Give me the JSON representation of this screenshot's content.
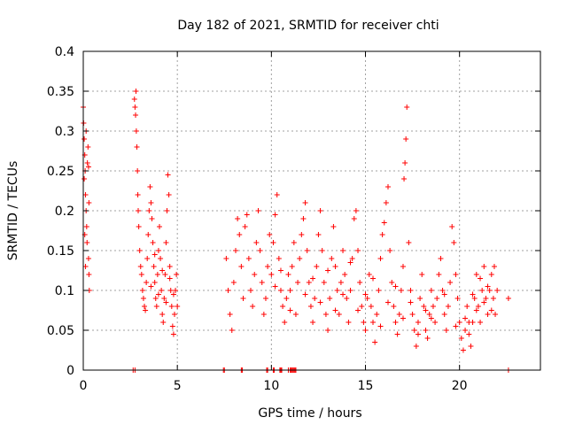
{
  "chart_data": {
    "type": "scatter",
    "title": "Day 182 of 2021, SRMTID for receiver chti",
    "xlabel": "GPS time / hours",
    "ylabel": "SRMTID / TECUs",
    "xlim": [
      0,
      24.3
    ],
    "ylim": [
      0,
      0.4
    ],
    "xticks": [
      0,
      5,
      10,
      15,
      20
    ],
    "xtick_labels": [
      "0",
      "5",
      "10",
      "15",
      "20"
    ],
    "yticks": [
      0,
      0.05,
      0.1,
      0.15,
      0.2,
      0.25,
      0.3,
      0.35,
      0.4
    ],
    "ytick_labels": [
      "0",
      "0.05",
      "0.1",
      "0.15",
      "0.2",
      "0.25",
      "0.3",
      "0.35",
      "0.4"
    ],
    "grid": true,
    "marker": "+",
    "color": "#ff0000",
    "series": [
      {
        "name": "SRMTID",
        "points": [
          [
            0.0,
            0.33
          ],
          [
            0.02,
            0.31
          ],
          [
            0.05,
            0.29
          ],
          [
            0.08,
            0.27
          ],
          [
            0.1,
            0.25
          ],
          [
            0.12,
            0.22
          ],
          [
            0.15,
            0.2
          ],
          [
            0.18,
            0.18
          ],
          [
            0.2,
            0.16
          ],
          [
            0.22,
            0.26
          ],
          [
            0.25,
            0.28
          ],
          [
            0.15,
            0.3
          ],
          [
            0.28,
            0.14
          ],
          [
            0.3,
            0.12
          ],
          [
            0.32,
            0.1
          ],
          [
            0.05,
            0.24
          ],
          [
            0.08,
            0.17
          ],
          [
            0.12,
            0.13
          ],
          [
            0.28,
            0.255
          ],
          [
            0.3,
            0.21
          ],
          [
            2.65,
            0.0
          ],
          [
            2.75,
            0.0
          ],
          [
            2.72,
            0.34
          ],
          [
            2.75,
            0.33
          ],
          [
            2.78,
            0.32
          ],
          [
            2.8,
            0.35
          ],
          [
            2.82,
            0.3
          ],
          [
            2.85,
            0.28
          ],
          [
            2.88,
            0.25
          ],
          [
            2.9,
            0.22
          ],
          [
            2.92,
            0.2
          ],
          [
            2.95,
            0.18
          ],
          [
            3.0,
            0.15
          ],
          [
            3.05,
            0.13
          ],
          [
            3.1,
            0.12
          ],
          [
            3.15,
            0.1
          ],
          [
            3.2,
            0.09
          ],
          [
            3.25,
            0.08
          ],
          [
            3.3,
            0.075
          ],
          [
            3.35,
            0.11
          ],
          [
            3.4,
            0.14
          ],
          [
            3.45,
            0.17
          ],
          [
            3.5,
            0.2
          ],
          [
            3.55,
            0.23
          ],
          [
            3.6,
            0.21
          ],
          [
            3.65,
            0.19
          ],
          [
            3.7,
            0.16
          ],
          [
            3.75,
            0.13
          ],
          [
            3.8,
            0.11
          ],
          [
            3.85,
            0.09
          ],
          [
            3.9,
            0.08
          ],
          [
            3.95,
            0.12
          ],
          [
            4.0,
            0.15
          ],
          [
            4.05,
            0.18
          ],
          [
            4.1,
            0.14
          ],
          [
            4.15,
            0.1
          ],
          [
            4.2,
            0.07
          ],
          [
            4.25,
            0.06
          ],
          [
            4.3,
            0.09
          ],
          [
            4.35,
            0.12
          ],
          [
            4.4,
            0.16
          ],
          [
            4.45,
            0.2
          ],
          [
            4.5,
            0.245
          ],
          [
            4.55,
            0.22
          ],
          [
            4.6,
            0.13
          ],
          [
            4.65,
            0.1
          ],
          [
            4.7,
            0.08
          ],
          [
            4.75,
            0.055
          ],
          [
            4.8,
            0.045
          ],
          [
            4.85,
            0.07
          ],
          [
            4.9,
            0.1
          ],
          [
            4.95,
            0.12
          ],
          [
            5.0,
            0.08
          ],
          [
            3.6,
            0.105
          ],
          [
            3.8,
            0.145
          ],
          [
            4.0,
            0.095
          ],
          [
            4.2,
            0.125
          ],
          [
            4.4,
            0.085
          ],
          [
            4.6,
            0.115
          ],
          [
            4.8,
            0.095
          ],
          [
            7.45,
            0.0
          ],
          [
            7.5,
            0.0
          ],
          [
            8.4,
            0.0
          ],
          [
            8.45,
            0.0
          ],
          [
            9.75,
            0.0
          ],
          [
            9.8,
            0.0
          ],
          [
            10.1,
            0.0
          ],
          [
            10.15,
            0.0
          ],
          [
            10.45,
            0.0
          ],
          [
            10.5,
            0.0
          ],
          [
            10.55,
            0.0
          ],
          [
            10.9,
            0.0
          ],
          [
            11.0,
            0.0
          ],
          [
            11.05,
            0.0
          ],
          [
            11.1,
            0.0
          ],
          [
            11.15,
            0.0
          ],
          [
            11.2,
            0.0
          ],
          [
            11.25,
            0.0
          ],
          [
            11.3,
            0.0
          ],
          [
            22.6,
            0.0
          ],
          [
            7.6,
            0.14
          ],
          [
            7.7,
            0.1
          ],
          [
            7.8,
            0.07
          ],
          [
            7.9,
            0.05
          ],
          [
            8.0,
            0.11
          ],
          [
            8.1,
            0.15
          ],
          [
            8.2,
            0.19
          ],
          [
            8.3,
            0.17
          ],
          [
            8.4,
            0.13
          ],
          [
            8.5,
            0.09
          ],
          [
            8.6,
            0.18
          ],
          [
            8.7,
            0.195
          ],
          [
            8.8,
            0.14
          ],
          [
            8.9,
            0.1
          ],
          [
            9.0,
            0.08
          ],
          [
            9.1,
            0.12
          ],
          [
            9.2,
            0.16
          ],
          [
            9.3,
            0.2
          ],
          [
            9.4,
            0.15
          ],
          [
            9.5,
            0.11
          ],
          [
            9.6,
            0.07
          ],
          [
            9.7,
            0.09
          ],
          [
            9.8,
            0.13
          ],
          [
            9.9,
            0.17
          ],
          [
            10.0,
            0.12
          ],
          [
            10.1,
            0.16
          ],
          [
            10.2,
            0.195
          ],
          [
            10.3,
            0.22
          ],
          [
            10.4,
            0.14
          ],
          [
            10.5,
            0.1
          ],
          [
            10.6,
            0.08
          ],
          [
            10.7,
            0.06
          ],
          [
            10.8,
            0.09
          ],
          [
            10.9,
            0.12
          ],
          [
            11.0,
            0.1
          ],
          [
            11.1,
            0.13
          ],
          [
            11.2,
            0.16
          ],
          [
            11.3,
            0.07
          ],
          [
            11.4,
            0.11
          ],
          [
            11.5,
            0.14
          ],
          [
            11.6,
            0.17
          ],
          [
            11.7,
            0.19
          ],
          [
            11.8,
            0.21
          ],
          [
            11.9,
            0.15
          ],
          [
            12.0,
            0.11
          ],
          [
            12.1,
            0.08
          ],
          [
            12.2,
            0.06
          ],
          [
            12.3,
            0.09
          ],
          [
            12.4,
            0.13
          ],
          [
            12.5,
            0.17
          ],
          [
            12.6,
            0.2
          ],
          [
            12.7,
            0.15
          ],
          [
            12.8,
            0.11
          ],
          [
            12.9,
            0.07
          ],
          [
            13.0,
            0.05
          ],
          [
            13.1,
            0.09
          ],
          [
            13.2,
            0.14
          ],
          [
            13.3,
            0.18
          ],
          [
            13.4,
            0.13
          ],
          [
            13.5,
            0.1
          ],
          [
            13.6,
            0.07
          ],
          [
            13.7,
            0.11
          ],
          [
            13.8,
            0.15
          ],
          [
            13.9,
            0.12
          ],
          [
            14.0,
            0.09
          ],
          [
            14.1,
            0.06
          ],
          [
            14.2,
            0.1
          ],
          [
            14.3,
            0.14
          ],
          [
            14.4,
            0.19
          ],
          [
            14.5,
            0.2
          ],
          [
            14.6,
            0.15
          ],
          [
            14.7,
            0.11
          ],
          [
            14.8,
            0.08
          ],
          [
            14.9,
            0.06
          ],
          [
            15.0,
            0.05
          ],
          [
            15.1,
            0.09
          ],
          [
            15.2,
            0.12
          ],
          [
            15.3,
            0.08
          ],
          [
            15.4,
            0.06
          ],
          [
            15.5,
            0.035
          ],
          [
            15.6,
            0.07
          ],
          [
            15.7,
            0.1
          ],
          [
            15.8,
            0.14
          ],
          [
            15.9,
            0.17
          ],
          [
            16.0,
            0.185
          ],
          [
            16.1,
            0.21
          ],
          [
            16.2,
            0.23
          ],
          [
            16.3,
            0.15
          ],
          [
            16.4,
            0.11
          ],
          [
            16.5,
            0.08
          ],
          [
            16.6,
            0.06
          ],
          [
            16.7,
            0.045
          ],
          [
            16.8,
            0.07
          ],
          [
            16.9,
            0.1
          ],
          [
            17.0,
            0.13
          ],
          [
            17.05,
            0.24
          ],
          [
            17.1,
            0.26
          ],
          [
            17.15,
            0.29
          ],
          [
            17.2,
            0.33
          ],
          [
            17.3,
            0.16
          ],
          [
            17.4,
            0.1
          ],
          [
            17.5,
            0.07
          ],
          [
            17.6,
            0.05
          ],
          [
            17.7,
            0.03
          ],
          [
            17.8,
            0.06
          ],
          [
            17.9,
            0.09
          ],
          [
            18.0,
            0.12
          ],
          [
            18.1,
            0.08
          ],
          [
            18.2,
            0.05
          ],
          [
            18.3,
            0.04
          ],
          [
            18.4,
            0.07
          ],
          [
            18.5,
            0.1
          ],
          [
            18.6,
            0.08
          ],
          [
            18.7,
            0.06
          ],
          [
            18.8,
            0.09
          ],
          [
            18.9,
            0.12
          ],
          [
            19.0,
            0.14
          ],
          [
            19.1,
            0.1
          ],
          [
            19.2,
            0.07
          ],
          [
            19.3,
            0.05
          ],
          [
            19.4,
            0.08
          ],
          [
            19.5,
            0.11
          ],
          [
            19.6,
            0.18
          ],
          [
            19.7,
            0.16
          ],
          [
            19.8,
            0.12
          ],
          [
            19.9,
            0.09
          ],
          [
            20.0,
            0.06
          ],
          [
            20.1,
            0.04
          ],
          [
            20.2,
            0.025
          ],
          [
            20.3,
            0.05
          ],
          [
            20.4,
            0.08
          ],
          [
            20.5,
            0.06
          ],
          [
            20.6,
            0.03
          ],
          [
            20.7,
            0.06
          ],
          [
            20.8,
            0.09
          ],
          [
            20.9,
            0.12
          ],
          [
            21.0,
            0.08
          ],
          [
            21.1,
            0.06
          ],
          [
            21.2,
            0.1
          ],
          [
            21.3,
            0.13
          ],
          [
            21.4,
            0.09
          ],
          [
            21.5,
            0.07
          ],
          [
            21.6,
            0.1
          ],
          [
            21.7,
            0.12
          ],
          [
            21.8,
            0.09
          ],
          [
            21.9,
            0.07
          ],
          [
            22.0,
            0.1
          ],
          [
            21.85,
            0.13
          ],
          [
            21.7,
            0.075
          ],
          [
            21.5,
            0.105
          ],
          [
            21.3,
            0.085
          ],
          [
            21.1,
            0.115
          ],
          [
            20.9,
            0.075
          ],
          [
            20.7,
            0.095
          ],
          [
            20.5,
            0.045
          ],
          [
            20.3,
            0.065
          ],
          [
            19.8,
            0.055
          ],
          [
            19.2,
            0.095
          ],
          [
            18.5,
            0.065
          ],
          [
            22.6,
            0.09
          ],
          [
            10.2,
            0.105
          ],
          [
            10.5,
            0.125
          ],
          [
            11.0,
            0.075
          ],
          [
            11.8,
            0.095
          ],
          [
            12.2,
            0.115
          ],
          [
            12.6,
            0.085
          ],
          [
            13.0,
            0.125
          ],
          [
            13.4,
            0.075
          ],
          [
            13.8,
            0.095
          ],
          [
            14.2,
            0.135
          ],
          [
            14.6,
            0.075
          ],
          [
            15.0,
            0.095
          ],
          [
            15.4,
            0.115
          ],
          [
            15.8,
            0.055
          ],
          [
            16.2,
            0.085
          ],
          [
            16.6,
            0.105
          ],
          [
            17.0,
            0.065
          ],
          [
            17.4,
            0.085
          ],
          [
            17.8,
            0.045
          ],
          [
            18.2,
            0.075
          ]
        ]
      }
    ]
  }
}
